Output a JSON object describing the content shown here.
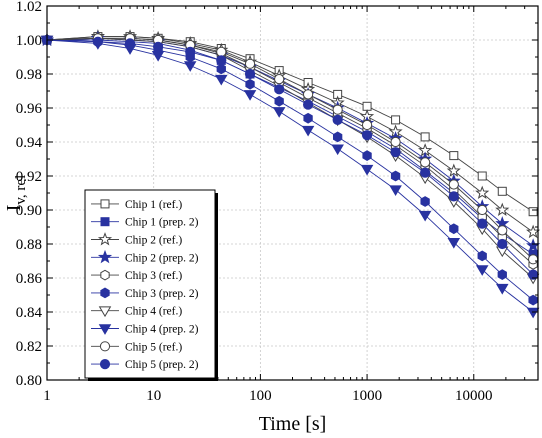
{
  "chart_data": {
    "type": "line",
    "xlabel": "Time [s]",
    "ylabel_main": "I",
    "ylabel_sub": "v, rel",
    "x_scale": "log",
    "xlim": [
      1,
      40000
    ],
    "ylim": [
      0.8,
      1.02
    ],
    "x_ticks": [
      1,
      10,
      100,
      1000,
      10000
    ],
    "x_tick_labels": [
      "1",
      "10",
      "100",
      "1000",
      "10000"
    ],
    "y_ticks": [
      0.8,
      0.82,
      0.84,
      0.86,
      0.88,
      0.9,
      0.92,
      0.94,
      0.96,
      0.98,
      1.0,
      1.02
    ],
    "y_tick_labels": [
      "0.80",
      "0.82",
      "0.84",
      "0.86",
      "0.88",
      "0.90",
      "0.92",
      "0.94",
      "0.96",
      "0.98",
      "1.00",
      "1.02"
    ],
    "grid": true,
    "legend_position": "bottom-left",
    "x": [
      1,
      3,
      6,
      11,
      22,
      43,
      80,
      150,
      280,
      530,
      1000,
      1850,
      3500,
      6500,
      12000,
      18500,
      36000
    ],
    "series": [
      {
        "name": "Chip 1 (ref.)",
        "marker": "square",
        "filled": false,
        "color": "#444444",
        "values": [
          1.0,
          1.002,
          1.002,
          1.001,
          0.999,
          0.995,
          0.989,
          0.982,
          0.975,
          0.968,
          0.961,
          0.953,
          0.943,
          0.932,
          0.92,
          0.911,
          0.899
        ]
      },
      {
        "name": "Chip 1 (prep. 2)",
        "marker": "square",
        "filled": true,
        "color": "#2832a0",
        "values": [
          1.0,
          1.0,
          0.999,
          0.998,
          0.994,
          0.988,
          0.98,
          0.972,
          0.964,
          0.955,
          0.946,
          0.936,
          0.923,
          0.91,
          0.895,
          0.886,
          0.874
        ]
      },
      {
        "name": "Chip 2 (ref.)",
        "marker": "star",
        "filled": false,
        "color": "#444444",
        "values": [
          1.0,
          1.002,
          1.002,
          1.001,
          0.998,
          0.994,
          0.987,
          0.979,
          0.971,
          0.963,
          0.955,
          0.946,
          0.935,
          0.923,
          0.91,
          0.9,
          0.887
        ]
      },
      {
        "name": "Chip 2 (prep. 2)",
        "marker": "star",
        "filled": true,
        "color": "#2832a0",
        "values": [
          1.0,
          1.001,
          1.0,
          0.999,
          0.996,
          0.991,
          0.984,
          0.976,
          0.968,
          0.96,
          0.951,
          0.942,
          0.93,
          0.917,
          0.902,
          0.892,
          0.879
        ]
      },
      {
        "name": "Chip 3 (ref.)",
        "marker": "hexagon",
        "filled": false,
        "color": "#444444",
        "values": [
          1.0,
          1.001,
          1.001,
          1.0,
          0.997,
          0.992,
          0.984,
          0.975,
          0.966,
          0.957,
          0.948,
          0.938,
          0.926,
          0.912,
          0.896,
          0.884,
          0.868
        ]
      },
      {
        "name": "Chip 3 (prep. 2)",
        "marker": "hexagon",
        "filled": true,
        "color": "#2832a0",
        "values": [
          1.0,
          0.999,
          0.997,
          0.994,
          0.99,
          0.983,
          0.974,
          0.964,
          0.954,
          0.943,
          0.932,
          0.92,
          0.905,
          0.889,
          0.873,
          0.862,
          0.847
        ]
      },
      {
        "name": "Chip 4 (ref.)",
        "marker": "triangle-down",
        "filled": false,
        "color": "#444444",
        "values": [
          1.0,
          1.001,
          1.0,
          0.999,
          0.996,
          0.991,
          0.982,
          0.973,
          0.963,
          0.953,
          0.943,
          0.932,
          0.919,
          0.905,
          0.889,
          0.876,
          0.86
        ]
      },
      {
        "name": "Chip 4 (prep. 2)",
        "marker": "triangle-down",
        "filled": true,
        "color": "#2832a0",
        "values": [
          1.0,
          0.998,
          0.995,
          0.991,
          0.985,
          0.977,
          0.968,
          0.958,
          0.947,
          0.936,
          0.924,
          0.912,
          0.897,
          0.881,
          0.865,
          0.854,
          0.84
        ]
      },
      {
        "name": "Chip 5 (ref.)",
        "marker": "circle",
        "filled": false,
        "color": "#444444",
        "values": [
          1.0,
          1.001,
          1.001,
          1.0,
          0.997,
          0.993,
          0.986,
          0.977,
          0.968,
          0.959,
          0.95,
          0.94,
          0.928,
          0.915,
          0.9,
          0.888,
          0.871
        ]
      },
      {
        "name": "Chip 5 (prep. 2)",
        "marker": "circle",
        "filled": true,
        "color": "#2832a0",
        "values": [
          1.0,
          0.999,
          0.998,
          0.996,
          0.993,
          0.988,
          0.98,
          0.971,
          0.962,
          0.953,
          0.944,
          0.934,
          0.922,
          0.908,
          0.892,
          0.88,
          0.862
        ]
      }
    ]
  }
}
